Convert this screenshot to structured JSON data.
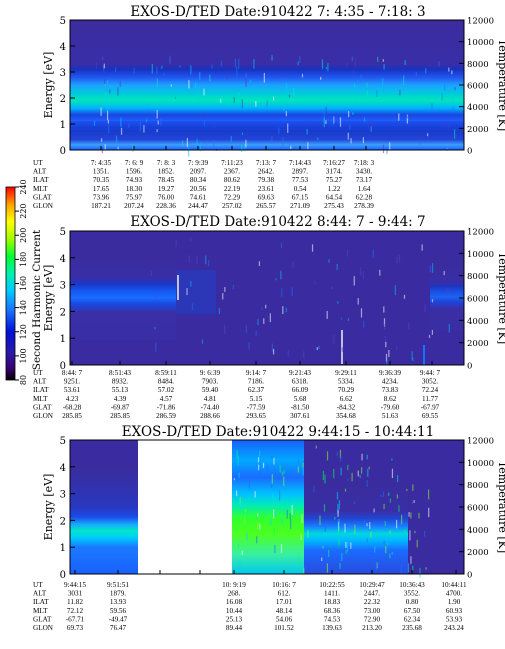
{
  "colorbar": {
    "label": "Second Harmonic Current",
    "ticks": [
      "80",
      "100",
      "120",
      "140",
      "160",
      "180",
      "200",
      "220",
      "240"
    ],
    "colors": [
      "#000000",
      "#4b0082",
      "#0000cd",
      "#2e6bff",
      "#00b4ff",
      "#00e5c0",
      "#00ff00",
      "#9cff00",
      "#ffff00",
      "#ffb000",
      "#ff0000"
    ]
  },
  "chart_data": [
    {
      "type": "heatmap",
      "title": "EXOS-D/TED   Date:910422  7: 4:35 - 7:18: 3",
      "ylabel": "Energy [eV]",
      "y2label": "Temperature [K]",
      "yticks": [
        "0",
        "1",
        "2",
        "3",
        "4",
        "5"
      ],
      "y2ticks": [
        "0",
        "2000",
        "4000",
        "6000",
        "8000",
        "10000",
        "12000"
      ],
      "ylim": [
        0,
        5
      ],
      "y2lim": [
        0,
        12000
      ],
      "table": {
        "labels": [
          "UT",
          "ALT",
          "ILAT",
          "MLT",
          "GLAT",
          "GLON"
        ],
        "columns": [
          [
            "7: 4:35",
            "1351.",
            "70.35",
            "17.65",
            "73.96",
            "187.21"
          ],
          [
            "7: 6: 9",
            "1596.",
            "74.93",
            "18.30",
            "75.97",
            "207.24"
          ],
          [
            "7: 8: 3",
            "1852.",
            "78.45",
            "19.27",
            "76.00",
            "228.36"
          ],
          [
            "7: 9:39",
            "2097.",
            "80.34",
            "20.56",
            "74.61",
            "244.47"
          ],
          [
            "7:11:23",
            "2367.",
            "80.62",
            "22.19",
            "72.29",
            "257.02"
          ],
          [
            "7:13: 7",
            "2642.",
            "79.38",
            "23.61",
            "69.63",
            "265.57"
          ],
          [
            "7:14:43",
            "2897.",
            "77.53",
            "0.54",
            "67.15",
            "271.09"
          ],
          [
            "7:16:27",
            "3174.",
            "75.27",
            "1.22",
            "64.54",
            "275.43"
          ],
          [
            "7:18: 3",
            "3430.",
            "73.17",
            "1.64",
            "62.28",
            "278.39"
          ]
        ]
      }
    },
    {
      "type": "heatmap",
      "title": "EXOS-D/TED   Date:910422  8:44: 7 - 9:44: 7",
      "ylabel": "Energy [eV]",
      "y2label": "Temperature [K]",
      "yticks": [
        "0",
        "1",
        "2",
        "3",
        "4",
        "5"
      ],
      "y2ticks": [
        "0",
        "2000",
        "4000",
        "6000",
        "8000",
        "10000",
        "12000"
      ],
      "ylim": [
        0,
        5
      ],
      "y2lim": [
        0,
        12000
      ],
      "table": {
        "labels": [
          "UT",
          "ALT",
          "ILAT",
          "MLT",
          "GLAT",
          "GLON"
        ],
        "columns": [
          [
            "8:44: 7",
            "9251.",
            "53.61",
            "4.23",
            "-68.28",
            "285.85"
          ],
          [
            "8:51:43",
            "8932.",
            "55.13",
            "4.39",
            "-69.87",
            "285.85"
          ],
          [
            "8:59:11",
            "8484.",
            "57.02",
            "4.57",
            "-71.86",
            "286.59"
          ],
          [
            "9: 6:39",
            "7903.",
            "59.40",
            "4.81",
            "-74.40",
            "288.66"
          ],
          [
            "9:14: 7",
            "7186.",
            "62.37",
            "5.15",
            "-77.59",
            "293.65"
          ],
          [
            "9:21:43",
            "6318.",
            "66.09",
            "5.68",
            "-81.50",
            "307.61"
          ],
          [
            "9:29:11",
            "5334.",
            "70.29",
            "6.62",
            "-84.32",
            "354.68"
          ],
          [
            "9:36:39",
            "4234.",
            "73.83",
            "8.62",
            "-79.60",
            "51.63"
          ],
          [
            "9:44: 7",
            "3052.",
            "72.24",
            "11.77",
            "-67.97",
            "69.55"
          ]
        ]
      }
    },
    {
      "type": "heatmap",
      "title": "EXOS-D/TED   Date:910422  9:44:15 - 10:44:11",
      "ylabel": "Energy [eV]",
      "y2label": "Temperature [K]",
      "yticks": [
        "0",
        "1",
        "2",
        "3",
        "4",
        "5"
      ],
      "y2ticks": [
        "0",
        "2000",
        "4000",
        "6000",
        "8000",
        "10000",
        "12000"
      ],
      "ylim": [
        0,
        5
      ],
      "y2lim": [
        0,
        12000
      ],
      "table": {
        "labels": [
          "UT",
          "ALT",
          "ILAT",
          "MLT",
          "GLAT",
          "GLON"
        ],
        "columns": [
          [
            "9:44:15",
            "3031",
            "11.82",
            "72.12",
            "-67.71",
            "69.73"
          ],
          [
            "9:51:51",
            "1879.",
            "13.93",
            "59.56",
            "-49.47",
            "76.47"
          ],
          [
            "",
            "",
            "",
            "",
            "",
            ""
          ],
          [
            "",
            "",
            "",
            "",
            "",
            ""
          ],
          [
            "10: 9:19",
            "268.",
            "16.08",
            "10.44",
            "25.13",
            "89.44"
          ],
          [
            "10:16: 7",
            "612.",
            "17.01",
            "48.14",
            "54.06",
            "101.52"
          ],
          [
            "10:22:55",
            "1411.",
            "18.83",
            "68.36",
            "74.53",
            "139.63"
          ],
          [
            "10:29:47",
            "2447.",
            "22.32",
            "73.00",
            "72.90",
            "213.20"
          ],
          [
            "10:36:43",
            "3552.",
            "0.80",
            "67.50",
            "62.34",
            "235.68"
          ],
          [
            "10:44:11",
            "4700.",
            "1.90",
            "60.93",
            "53.93",
            "243.24"
          ]
        ]
      }
    }
  ]
}
